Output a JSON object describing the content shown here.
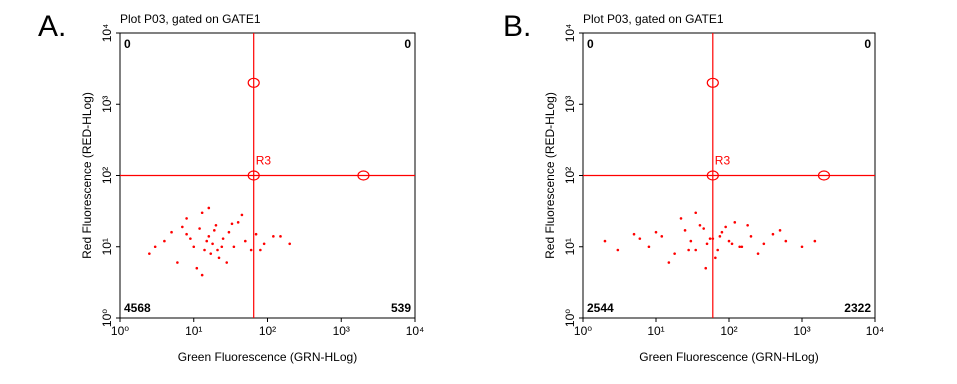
{
  "chart_data": [
    {
      "type": "scatter",
      "panel_label": "A.",
      "title": "Plot P03, gated on GATE1",
      "x_label": "Green Fluorescence (GRN-HLog)",
      "y_label": "Red Fluorescence (RED-HLog)",
      "log_scale": true,
      "color": "#ff0000",
      "xlim": [
        1,
        10000
      ],
      "ylim": [
        1,
        10000
      ],
      "xticks": [
        {
          "value": 1,
          "label": "10⁰"
        },
        {
          "value": 10,
          "label": "10¹"
        },
        {
          "value": 100,
          "label": "10²"
        },
        {
          "value": 1000,
          "label": "10³"
        },
        {
          "value": 10000,
          "label": "10⁴"
        }
      ],
      "yticks": [
        {
          "value": 1,
          "label": "10⁰"
        },
        {
          "value": 10,
          "label": "10¹"
        },
        {
          "value": 100,
          "label": "10²"
        },
        {
          "value": 1000,
          "label": "10³"
        },
        {
          "value": 10000,
          "label": "10⁴"
        }
      ],
      "x": [
        2.5,
        4,
        6,
        8,
        10,
        12,
        14,
        16,
        18,
        20,
        22,
        25,
        30,
        35,
        40,
        50,
        60,
        70,
        90,
        120,
        8,
        11,
        13,
        15,
        17,
        19,
        24,
        28,
        9,
        7,
        5,
        45,
        80,
        150,
        200,
        3,
        13,
        16,
        21,
        33
      ],
      "values": [
        8,
        12,
        6,
        15,
        10,
        18,
        9,
        14,
        11,
        20,
        7,
        13,
        16,
        10,
        22,
        12,
        9,
        15,
        11,
        14,
        25,
        5,
        30,
        12,
        8,
        17,
        10,
        6,
        13,
        19,
        16,
        28,
        9,
        14,
        11,
        10,
        4,
        35,
        9,
        21
      ],
      "gate_label": "R3",
      "gate_x": 65,
      "gate_y": 100,
      "handle_x": [
        65,
        65,
        2000
      ],
      "handle_y": [
        2000,
        100,
        100
      ],
      "quadrant_counts": {
        "upper_left": 0,
        "upper_right": 0,
        "lower_left": 4568,
        "lower_right": 539
      }
    },
    {
      "type": "scatter",
      "panel_label": "B.",
      "title": "Plot P03, gated on GATE1",
      "x_label": "Green Fluorescence (GRN-HLog)",
      "y_label": "Red Fluorescence (RED-HLog)",
      "log_scale": true,
      "color": "#ff0000",
      "xlim": [
        1,
        10000
      ],
      "ylim": [
        1,
        10000
      ],
      "xticks": [
        {
          "value": 1,
          "label": "10⁰"
        },
        {
          "value": 10,
          "label": "10¹"
        },
        {
          "value": 100,
          "label": "10²"
        },
        {
          "value": 1000,
          "label": "10³"
        },
        {
          "value": 10000,
          "label": "10⁴"
        }
      ],
      "yticks": [
        {
          "value": 1,
          "label": "10⁰"
        },
        {
          "value": 10,
          "label": "10¹"
        },
        {
          "value": 100,
          "label": "10²"
        },
        {
          "value": 1000,
          "label": "10³"
        },
        {
          "value": 10000,
          "label": "10⁴"
        }
      ],
      "x": [
        2,
        3,
        5,
        8,
        12,
        18,
        25,
        30,
        40,
        50,
        60,
        70,
        80,
        100,
        120,
        150,
        200,
        250,
        300,
        400,
        600,
        1000,
        15,
        22,
        35,
        45,
        55,
        65,
        90,
        110,
        35,
        48,
        75,
        140,
        10,
        6,
        28,
        180,
        500,
        1500
      ],
      "values": [
        12,
        9,
        15,
        10,
        14,
        8,
        17,
        12,
        20,
        11,
        13,
        9,
        16,
        12,
        22,
        10,
        14,
        8,
        11,
        15,
        12,
        10,
        6,
        25,
        9,
        18,
        13,
        7,
        19,
        11,
        30,
        5,
        14,
        10,
        16,
        13,
        9,
        20,
        17,
        12
      ],
      "gate_label": "R3",
      "gate_x": 60,
      "gate_y": 100,
      "handle_x": [
        60,
        60,
        2000
      ],
      "handle_y": [
        2000,
        100,
        100
      ],
      "quadrant_counts": {
        "upper_left": 0,
        "upper_right": 0,
        "lower_left": 2544,
        "lower_right": 2322
      }
    }
  ]
}
